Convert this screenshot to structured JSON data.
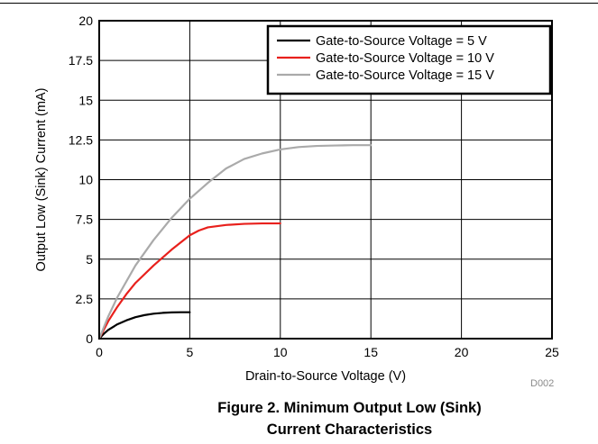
{
  "chart_data": {
    "type": "line",
    "xlabel": "Drain-to-Source Voltage (V)",
    "ylabel": "Output Low (Sink) Current (mA)",
    "xlim": [
      0,
      25
    ],
    "ylim": [
      0,
      20
    ],
    "x_ticks": [
      "0",
      "5",
      "10",
      "15",
      "20",
      "25"
    ],
    "y_ticks": [
      "0",
      "2.5",
      "5",
      "7.5",
      "10",
      "12.5",
      "15",
      "17.5",
      "20"
    ],
    "grid": true,
    "legend_position": "top-right",
    "series": [
      {
        "name": "Gate-to-Source Voltage = 5 V",
        "color": "#000000",
        "x": [
          0,
          0.25,
          0.5,
          1,
          1.5,
          2,
          2.5,
          3,
          3.5,
          4,
          4.5,
          5
        ],
        "y": [
          0,
          0.3,
          0.55,
          0.9,
          1.15,
          1.35,
          1.48,
          1.57,
          1.62,
          1.65,
          1.66,
          1.66
        ]
      },
      {
        "name": "Gate-to-Source Voltage = 10 V",
        "color": "#e8201c",
        "x": [
          0,
          0.5,
          1,
          1.5,
          2,
          3,
          4,
          5,
          5.5,
          6,
          7,
          8,
          9,
          10
        ],
        "y": [
          0,
          1.1,
          2.0,
          2.8,
          3.5,
          4.6,
          5.6,
          6.5,
          6.8,
          7.0,
          7.15,
          7.22,
          7.25,
          7.25
        ]
      },
      {
        "name": "Gate-to-Source Voltage = 15 V",
        "color": "#aaaaaa",
        "x": [
          0,
          0.5,
          1,
          2,
          3,
          4,
          5,
          6,
          7,
          8,
          9,
          10,
          11,
          12,
          13,
          14,
          15
        ],
        "y": [
          0,
          1.4,
          2.6,
          4.6,
          6.2,
          7.6,
          8.8,
          9.8,
          10.7,
          11.3,
          11.65,
          11.9,
          12.05,
          12.12,
          12.15,
          12.17,
          12.17
        ]
      }
    ]
  },
  "figure_code": "D002",
  "caption_line1": "Figure 2. Minimum Output Low (Sink)",
  "caption_line2": "Current Characteristics"
}
